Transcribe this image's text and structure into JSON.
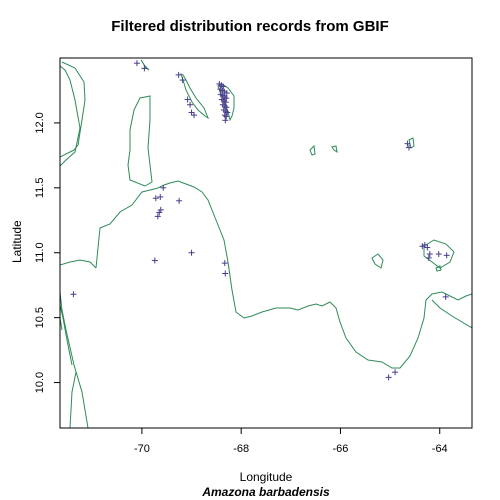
{
  "title": "Filtered distribution records from GBIF",
  "xlabel": "Longitude",
  "ylabel": "Latitude",
  "subtitle": "Amazona barbadensis",
  "colors": {
    "coast": "#2e8b57",
    "points": "#483d8b",
    "frame": "#000000"
  },
  "chart_data": {
    "type": "scatter",
    "xlim": [
      -71.65,
      -63.35
    ],
    "ylim": [
      9.65,
      12.5
    ],
    "xticks": [
      -70,
      -68,
      -66,
      -64
    ],
    "xtick_labels": [
      "-70",
      "-68",
      "-66",
      "-64"
    ],
    "yticks": [
      10.0,
      10.5,
      11.0,
      11.5,
      12.0
    ],
    "ytick_labels": [
      "10.0",
      "10.5",
      "11.0",
      "11.5",
      "12.0"
    ],
    "points": [
      [
        -70.1,
        12.46
      ],
      [
        -69.95,
        12.42
      ],
      [
        -69.26,
        12.37
      ],
      [
        -69.18,
        12.33
      ],
      [
        -69.08,
        12.18
      ],
      [
        -69.03,
        12.14
      ],
      [
        -69.0,
        12.08
      ],
      [
        -68.95,
        12.06
      ],
      [
        -68.44,
        12.3
      ],
      [
        -68.4,
        12.29
      ],
      [
        -68.36,
        12.28
      ],
      [
        -68.42,
        12.26
      ],
      [
        -68.38,
        12.25
      ],
      [
        -68.34,
        12.24
      ],
      [
        -68.41,
        12.22
      ],
      [
        -68.37,
        12.21
      ],
      [
        -68.33,
        12.2
      ],
      [
        -68.39,
        12.18
      ],
      [
        -68.35,
        12.17
      ],
      [
        -68.31,
        12.16
      ],
      [
        -68.37,
        12.14
      ],
      [
        -68.33,
        12.13
      ],
      [
        -68.3,
        12.12
      ],
      [
        -68.35,
        12.1
      ],
      [
        -68.31,
        12.09
      ],
      [
        -68.28,
        12.08
      ],
      [
        -68.33,
        12.06
      ],
      [
        -68.3,
        12.05
      ],
      [
        -68.32,
        12.02
      ],
      [
        -68.3,
        12.19
      ],
      [
        -68.29,
        12.23
      ],
      [
        -64.65,
        11.84
      ],
      [
        -64.62,
        11.81
      ],
      [
        -69.57,
        11.5
      ],
      [
        -69.72,
        11.42
      ],
      [
        -69.63,
        11.43
      ],
      [
        -69.25,
        11.4
      ],
      [
        -69.62,
        11.33
      ],
      [
        -69.65,
        11.31
      ],
      [
        -69.68,
        11.28
      ],
      [
        -69.0,
        11.0
      ],
      [
        -69.74,
        10.94
      ],
      [
        -68.33,
        10.92
      ],
      [
        -68.32,
        10.84
      ],
      [
        -71.38,
        10.68
      ],
      [
        -64.35,
        11.05
      ],
      [
        -64.3,
        11.06
      ],
      [
        -64.25,
        11.04
      ],
      [
        -64.2,
        10.99
      ],
      [
        -64.22,
        10.96
      ],
      [
        -64.02,
        10.99
      ],
      [
        -63.86,
        10.98
      ],
      [
        -63.88,
        10.66
      ],
      [
        -64.9,
        10.08
      ],
      [
        -65.03,
        10.04
      ]
    ]
  }
}
